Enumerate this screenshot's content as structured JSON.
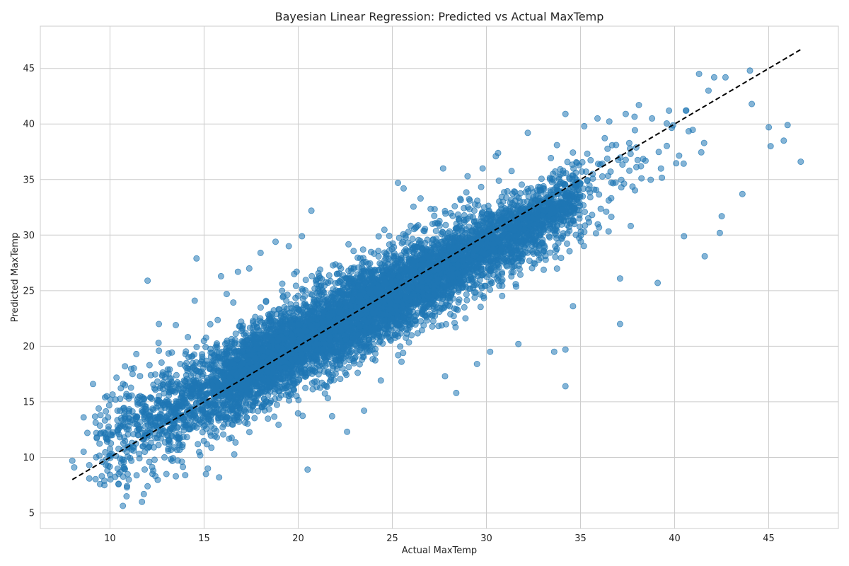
{
  "chart_data": {
    "type": "scatter",
    "title": "Bayesian Linear Regression: Predicted vs Actual MaxTemp",
    "xlabel": "Actual MaxTemp",
    "ylabel": "Predicted MaxTemp",
    "xlim": [
      6.3,
      48.7
    ],
    "ylim": [
      3.6,
      48.8
    ],
    "xticks": [
      10,
      15,
      20,
      25,
      30,
      35,
      40,
      45
    ],
    "yticks": [
      5,
      10,
      15,
      20,
      25,
      30,
      35,
      40,
      45
    ],
    "grid": true,
    "point_color": "#1f77b4",
    "point_alpha": 0.55,
    "reference_line": {
      "style": "dashed",
      "color": "#000000",
      "x": [
        8.0,
        46.7
      ],
      "y": [
        8.0,
        46.7
      ]
    },
    "series": [
      {
        "points": [
          [
            8.0,
            9.7
          ],
          [
            8.1,
            9.1
          ],
          [
            8.6,
            10.5
          ],
          [
            8.6,
            13.6
          ],
          [
            8.9,
            8.1
          ],
          [
            8.9,
            9.3
          ],
          [
            8.8,
            12.2
          ],
          [
            9.1,
            16.6
          ],
          [
            9.3,
            11.8
          ],
          [
            9.4,
            14.4
          ],
          [
            9.5,
            13.8
          ],
          [
            9.6,
            9.6
          ],
          [
            9.7,
            7.9
          ],
          [
            9.7,
            7.5
          ],
          [
            9.8,
            11.7
          ],
          [
            9.9,
            13.6
          ],
          [
            10.1,
            10.3
          ],
          [
            10.3,
            15.2
          ],
          [
            10.4,
            12.3
          ],
          [
            10.4,
            14.2
          ],
          [
            10.6,
            12.8
          ],
          [
            10.6,
            9.5
          ],
          [
            10.8,
            16.5
          ],
          [
            10.8,
            18.2
          ],
          [
            10.9,
            7.3
          ],
          [
            11.0,
            8.0
          ],
          [
            11.0,
            15.3
          ],
          [
            11.2,
            17.5
          ],
          [
            11.4,
            19.3
          ],
          [
            11.5,
            12.0
          ],
          [
            11.7,
            6.0
          ],
          [
            11.8,
            6.7
          ],
          [
            12.0,
            25.9
          ],
          [
            12.0,
            7.4
          ],
          [
            12.1,
            18.3
          ],
          [
            12.3,
            8.8
          ],
          [
            12.6,
            22.0
          ],
          [
            12.6,
            19.6
          ],
          [
            13.0,
            8.5
          ],
          [
            13.5,
            8.3
          ],
          [
            13.5,
            21.9
          ],
          [
            14.0,
            8.4
          ],
          [
            14.5,
            24.1
          ],
          [
            14.6,
            27.9
          ],
          [
            15.1,
            8.5
          ],
          [
            15.2,
            9.0
          ],
          [
            15.8,
            8.2
          ],
          [
            15.9,
            26.3
          ],
          [
            16.2,
            24.7
          ],
          [
            16.8,
            26.7
          ],
          [
            17.4,
            27.0
          ],
          [
            18.0,
            28.4
          ],
          [
            18.8,
            29.4
          ],
          [
            19.5,
            29.0
          ],
          [
            20.2,
            29.9
          ],
          [
            20.5,
            8.9
          ],
          [
            20.7,
            32.2
          ],
          [
            21.8,
            13.7
          ],
          [
            22.6,
            12.3
          ],
          [
            23.5,
            14.2
          ],
          [
            25.3,
            34.7
          ],
          [
            25.6,
            34.2
          ],
          [
            26.5,
            33.3
          ],
          [
            27.7,
            36.0
          ],
          [
            27.8,
            17.3
          ],
          [
            28.4,
            15.8
          ],
          [
            29.0,
            35.3
          ],
          [
            29.5,
            18.4
          ],
          [
            29.8,
            36.0
          ],
          [
            30.2,
            19.5
          ],
          [
            30.5,
            37.1
          ],
          [
            31.7,
            20.2
          ],
          [
            32.2,
            39.2
          ],
          [
            33.6,
            19.5
          ],
          [
            34.2,
            16.4
          ],
          [
            34.2,
            19.7
          ],
          [
            34.2,
            40.9
          ],
          [
            34.6,
            23.6
          ],
          [
            35.2,
            39.8
          ],
          [
            35.9,
            40.5
          ],
          [
            37.1,
            22.0
          ],
          [
            37.1,
            26.1
          ],
          [
            37.4,
            40.9
          ],
          [
            38.1,
            41.7
          ],
          [
            38.8,
            40.5
          ],
          [
            39.1,
            25.7
          ],
          [
            39.7,
            41.2
          ],
          [
            40.5,
            29.9
          ],
          [
            40.6,
            41.2
          ],
          [
            41.3,
            44.5
          ],
          [
            41.6,
            28.1
          ],
          [
            41.8,
            43.0
          ],
          [
            42.1,
            44.2
          ],
          [
            42.4,
            30.2
          ],
          [
            42.5,
            31.7
          ],
          [
            42.7,
            44.2
          ],
          [
            43.6,
            33.7
          ],
          [
            44.0,
            44.8
          ],
          [
            44.1,
            41.8
          ],
          [
            45.0,
            39.7
          ],
          [
            45.1,
            38.0
          ],
          [
            45.8,
            38.5
          ],
          [
            46.0,
            39.9
          ],
          [
            46.7,
            36.6
          ]
        ]
      }
    ]
  }
}
